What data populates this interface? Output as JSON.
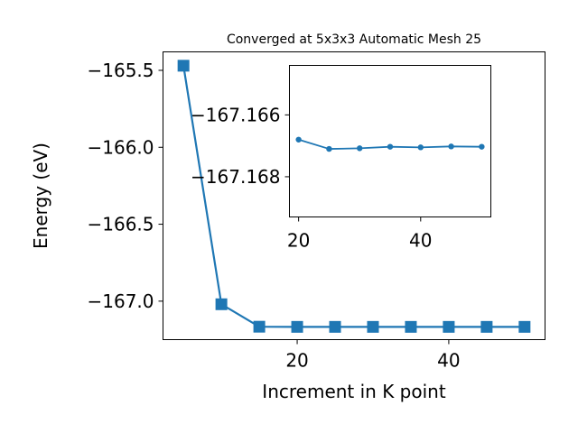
{
  "chart_data": [
    {
      "type": "line",
      "title": "Converged at 5x3x3 Automatic Mesh 25",
      "xlabel": "Increment in K point",
      "ylabel": "Energy (eV)",
      "xlim": [
        2.3,
        52.7
      ],
      "ylim": [
        -167.25,
        -165.38
      ],
      "xticks": [
        20,
        40
      ],
      "xtick_labels": [
        "20",
        "40"
      ],
      "yticks": [
        -167.0,
        -166.5,
        -166.0,
        -165.5
      ],
      "ytick_labels": [
        "−167.0",
        "−166.5",
        "−166.0",
        "−165.5"
      ],
      "marker": "square",
      "color": "#1f77b4",
      "series": [
        {
          "x": [
            5,
            10,
            15,
            20,
            25,
            30,
            35,
            40,
            45,
            50
          ],
          "y": [
            -165.47,
            -167.02,
            -167.166,
            -167.167,
            -167.167,
            -167.167,
            -167.167,
            -167.167,
            -167.167,
            -167.167
          ]
        }
      ]
    },
    {
      "type": "line",
      "title": "",
      "xlabel": "",
      "ylabel": "",
      "xlim": [
        18.5,
        51.5
      ],
      "ylim": [
        -167.1693,
        -167.1644
      ],
      "xticks": [
        20,
        40
      ],
      "xtick_labels": [
        "20",
        "40"
      ],
      "yticks": [
        -167.168,
        -167.166
      ],
      "ytick_labels": [
        "−167.168",
        "−167.166"
      ],
      "marker": "circle",
      "color": "#1f77b4",
      "series": [
        {
          "x": [
            20,
            25,
            30,
            35,
            40,
            45,
            50
          ],
          "y": [
            -167.1668,
            -167.1671,
            -167.16708,
            -167.16703,
            -167.16705,
            -167.16702,
            -167.16703
          ]
        }
      ]
    }
  ]
}
